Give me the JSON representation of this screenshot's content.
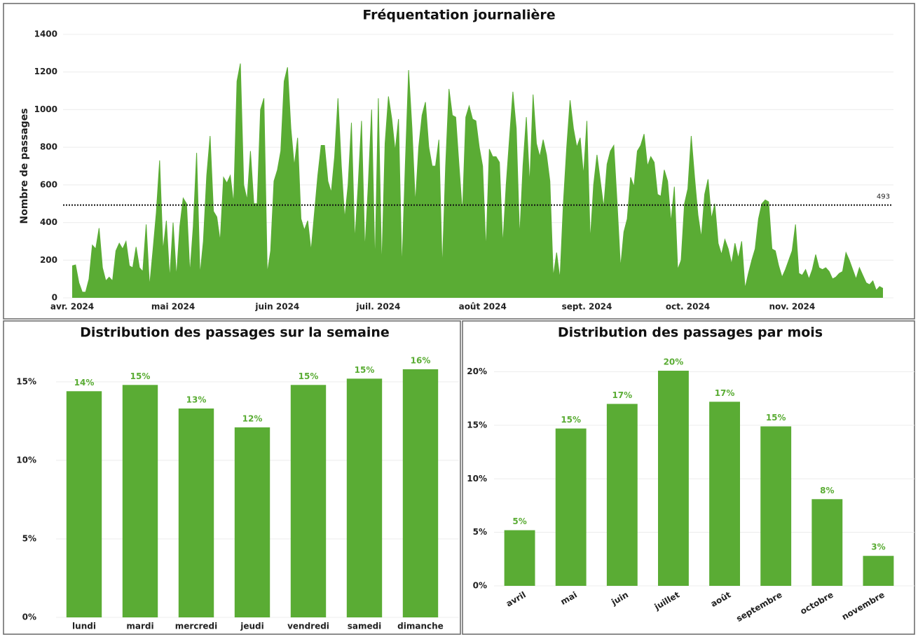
{
  "chart_data": [
    {
      "type": "area",
      "title": "Fréquentation journalière",
      "ylabel": "Nombre de passages",
      "color": "#5aac34",
      "x": [
        0,
        1,
        2,
        3,
        4,
        5,
        6,
        7,
        8,
        9,
        10,
        11,
        12,
        13,
        14,
        15,
        16,
        17,
        18,
        19,
        20,
        21,
        22,
        23,
        24,
        25,
        26,
        27,
        28,
        29,
        30,
        31,
        32,
        33,
        34,
        35,
        36,
        37,
        38,
        39,
        40,
        41,
        42,
        43,
        44,
        45,
        46,
        47,
        48,
        49,
        50,
        51,
        52,
        53,
        54,
        55,
        56,
        57,
        58,
        59,
        60,
        61,
        62,
        63,
        64,
        65,
        66,
        67,
        68,
        69,
        70,
        71,
        72,
        73,
        74,
        75,
        76,
        77,
        78,
        79,
        80,
        81,
        82,
        83,
        84,
        85,
        86,
        87,
        88,
        89,
        90,
        91,
        92,
        93,
        94,
        95,
        96,
        97,
        98,
        99,
        100,
        101,
        102,
        103,
        104,
        105,
        106,
        107,
        108,
        109,
        110,
        111,
        112,
        113,
        114,
        115,
        116,
        117,
        118,
        119,
        120,
        121,
        122,
        123,
        124,
        125,
        126,
        127,
        128,
        129,
        130,
        131,
        132,
        133,
        134,
        135,
        136,
        137,
        138,
        139,
        140,
        141,
        142,
        143,
        144,
        145,
        146,
        147,
        148,
        149,
        150,
        151,
        152,
        153,
        154,
        155,
        156,
        157,
        158,
        159,
        160,
        161,
        162,
        163,
        164,
        165,
        166,
        167,
        168,
        169,
        170,
        171,
        172,
        173,
        174,
        175,
        176,
        177,
        178,
        179,
        180,
        181,
        182,
        183,
        184,
        185,
        186,
        187,
        188,
        189,
        190,
        191,
        192,
        193,
        194,
        195,
        196,
        197,
        198,
        199,
        200,
        201,
        202,
        203,
        204,
        205,
        206,
        207,
        208,
        209,
        210,
        211,
        212,
        213,
        214,
        215,
        216,
        217,
        218,
        219,
        220,
        221,
        222,
        223,
        224,
        225,
        226,
        227,
        228,
        229,
        230,
        231,
        232,
        233,
        234,
        235,
        236,
        237,
        238,
        239,
        240,
        241
      ],
      "values": [
        170,
        175,
        80,
        30,
        30,
        100,
        280,
        260,
        370,
        160,
        90,
        110,
        90,
        250,
        290,
        260,
        300,
        170,
        160,
        270,
        160,
        140,
        390,
        60,
        250,
        450,
        730,
        250,
        410,
        100,
        400,
        110,
        380,
        530,
        500,
        130,
        380,
        770,
        120,
        300,
        650,
        860,
        460,
        430,
        300,
        640,
        610,
        650,
        500,
        1150,
        1245,
        600,
        520,
        780,
        500,
        500,
        1000,
        1060,
        130,
        250,
        620,
        680,
        780,
        1150,
        1225,
        900,
        700,
        850,
        420,
        360,
        410,
        250,
        450,
        650,
        810,
        810,
        620,
        560,
        750,
        1060,
        700,
        420,
        600,
        930,
        300,
        600,
        940,
        250,
        600,
        1000,
        170,
        1060,
        150,
        820,
        1070,
        950,
        780,
        950,
        150,
        700,
        1210,
        900,
        500,
        800,
        970,
        1040,
        800,
        700,
        700,
        840,
        150,
        700,
        1110,
        970,
        960,
        700,
        450,
        960,
        1020,
        950,
        940,
        800,
        700,
        250,
        790,
        750,
        750,
        720,
        280,
        600,
        850,
        1095,
        900,
        320,
        700,
        960,
        600,
        1080,
        820,
        750,
        840,
        760,
        620,
        110,
        240,
        100,
        500,
        800,
        1050,
        900,
        800,
        850,
        650,
        940,
        300,
        600,
        760,
        620,
        480,
        710,
        780,
        810,
        500,
        160,
        350,
        420,
        640,
        590,
        780,
        810,
        870,
        700,
        750,
        720,
        550,
        540,
        680,
        620,
        400,
        590,
        150,
        200,
        500,
        580,
        860,
        640,
        440,
        320,
        550,
        630,
        420,
        500,
        290,
        230,
        310,
        260,
        180,
        290,
        210,
        300,
        50,
        130,
        200,
        260,
        420,
        500,
        520,
        510,
        260,
        250,
        170,
        110,
        150,
        200,
        250,
        390,
        130,
        120,
        150,
        100,
        150,
        230,
        160,
        150,
        160,
        140,
        100,
        110,
        130,
        140,
        240,
        200,
        150,
        100,
        160,
        120,
        80,
        70,
        90,
        40,
        60,
        50
      ],
      "xlim": [
        0,
        241
      ],
      "xticks": [
        {
          "value": 0,
          "label": "avr. 2024"
        },
        {
          "value": 30,
          "label": "mai 2024"
        },
        {
          "value": 61,
          "label": "juin 2024"
        },
        {
          "value": 91,
          "label": "juil. 2024"
        },
        {
          "value": 122,
          "label": "août 2024"
        },
        {
          "value": 153,
          "label": "sept. 2024"
        },
        {
          "value": 183,
          "label": "oct. 2024"
        },
        {
          "value": 214,
          "label": "nov. 2024"
        }
      ],
      "ylim": [
        0,
        1400
      ],
      "yticks": [
        0,
        200,
        400,
        600,
        800,
        1000,
        1200,
        1400
      ],
      "grid": true,
      "reference_line": 493
    },
    {
      "type": "bar",
      "title": "Distribution des passages sur la semaine",
      "color": "#5aac34",
      "categories": [
        "lundi",
        "mardi",
        "mercredi",
        "jeudi",
        "vendredi",
        "samedi",
        "dimanche"
      ],
      "values": [
        14.4,
        14.8,
        13.3,
        12.1,
        14.8,
        15.2,
        15.8
      ],
      "value_labels": [
        "14%",
        "15%",
        "13%",
        "12%",
        "15%",
        "15%",
        "16%"
      ],
      "ylim": [
        0,
        17
      ],
      "yticks": [
        {
          "value": 0,
          "label": "0%"
        },
        {
          "value": 5,
          "label": "5%"
        },
        {
          "value": 10,
          "label": "10%"
        },
        {
          "value": 15,
          "label": "15%"
        }
      ],
      "grid": true
    },
    {
      "type": "bar",
      "title": "Distribution des passages par mois",
      "color": "#5aac34",
      "categories": [
        "avril",
        "mai",
        "juin",
        "juillet",
        "août",
        "septembre",
        "octobre",
        "novembre"
      ],
      "values": [
        5.2,
        14.7,
        17.0,
        20.1,
        17.2,
        14.9,
        8.1,
        2.8
      ],
      "value_labels": [
        "5%",
        "15%",
        "17%",
        "20%",
        "17%",
        "15%",
        "8%",
        "3%"
      ],
      "ylim": [
        0,
        22
      ],
      "yticks": [
        {
          "value": 0,
          "label": "0%"
        },
        {
          "value": 5,
          "label": "5%"
        },
        {
          "value": 10,
          "label": "10%"
        },
        {
          "value": 15,
          "label": "15%"
        },
        {
          "value": 20,
          "label": "20%"
        }
      ],
      "grid": true,
      "rotate_labels": true
    }
  ]
}
